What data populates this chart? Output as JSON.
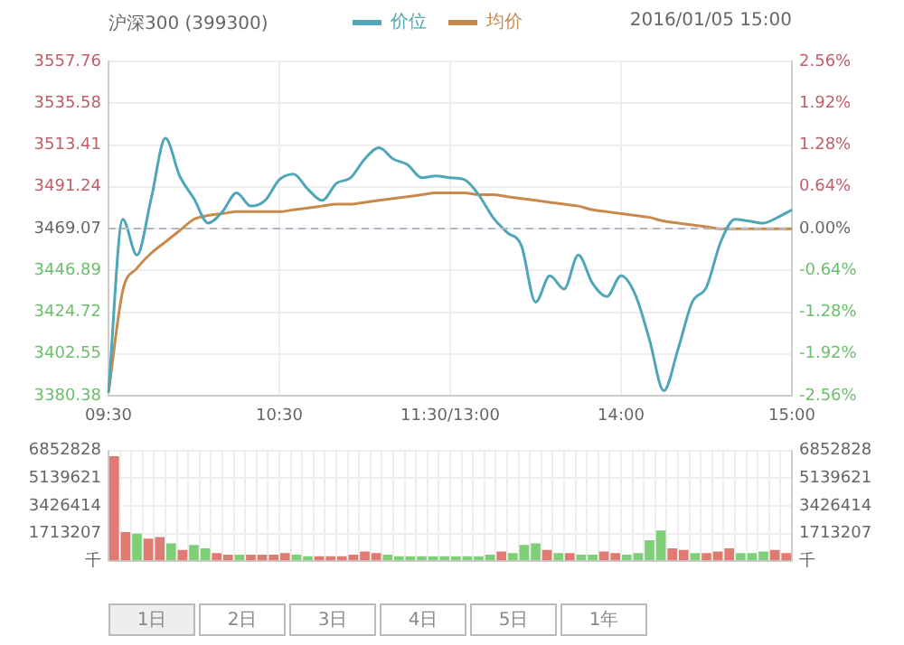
{
  "chart_data": [
    {
      "type": "line",
      "title": "沪深300 (399300)",
      "subtitle": "2016/01/05 15:00",
      "legend": "top",
      "marker": "none",
      "grid": true,
      "categories": [
        "09:30",
        null,
        null,
        null,
        null,
        null,
        null,
        null,
        null,
        null,
        null,
        null,
        "10:30",
        null,
        null,
        null,
        null,
        null,
        null,
        null,
        null,
        null,
        null,
        null,
        "11:30/13:00",
        null,
        null,
        null,
        null,
        null,
        null,
        null,
        null,
        null,
        null,
        null,
        "14:00",
        null,
        null,
        null,
        null,
        null,
        null,
        null,
        null,
        null,
        null,
        null,
        "15:00"
      ],
      "ylim": [
        3380.38,
        3557.76
      ],
      "yticks": [
        3380.38,
        3402.55,
        3424.72,
        3446.89,
        3469.07,
        3491.24,
        3513.41,
        3535.58,
        3557.76
      ],
      "y2lim": [
        -2.56,
        2.56
      ],
      "y2ticks": [
        {
          "value": -2.56,
          "label": "-2.56%"
        },
        {
          "value": -1.92,
          "label": "-1.92%"
        },
        {
          "value": -1.28,
          "label": "-1.28%"
        },
        {
          "value": -0.64,
          "label": "-0.64%"
        },
        {
          "value": 0,
          "label": "0.00%"
        },
        {
          "value": 0.64,
          "label": "0.64%"
        },
        {
          "value": 1.28,
          "label": "1.28%"
        },
        {
          "value": 1.92,
          "label": "1.92%"
        },
        {
          "value": 2.56,
          "label": "2.56%"
        }
      ],
      "ref_lines": [
        {
          "axis": "y",
          "value": 3469.07,
          "color": "#b0b8c8",
          "line_style": "dashed"
        }
      ],
      "series": [
        {
          "name": "价位",
          "color": "#4ea6b8",
          "values": [
            3382,
            3474,
            3455,
            3485,
            3517,
            3497,
            3485,
            3472,
            3478,
            3488,
            3481,
            3484,
            3495,
            3498,
            3490,
            3484,
            3493,
            3496,
            3506,
            3512,
            3506,
            3503,
            3496,
            3497,
            3496,
            3495,
            3487,
            3475,
            3467,
            3460,
            3430,
            3444,
            3437,
            3455,
            3440,
            3433,
            3444,
            3434,
            3410,
            3383,
            3405,
            3430,
            3438,
            3462,
            3474,
            3473,
            3472,
            3475,
            3479
          ]
        },
        {
          "name": "均价",
          "color": "#c88a4a",
          "values": [
            3382,
            3436,
            3448,
            3456,
            3462,
            3468,
            3474,
            3476,
            3477,
            3478,
            3478,
            3478,
            3478,
            3479,
            3480,
            3481,
            3482,
            3482,
            3483,
            3484,
            3485,
            3486,
            3487,
            3488,
            3488,
            3488,
            3487,
            3487,
            3486,
            3485,
            3484,
            3483,
            3482,
            3481,
            3479,
            3478,
            3477,
            3476,
            3475,
            3473,
            3472,
            3471,
            3470,
            3469,
            3469,
            3469,
            3469,
            3469,
            3469
          ]
        }
      ]
    },
    {
      "type": "bar",
      "grid": true,
      "annotations": [
        "1日",
        "2日",
        "3日",
        "4日",
        "5日",
        "1年"
      ],
      "categories": [
        null,
        null,
        null,
        null,
        null,
        null,
        null,
        null,
        null,
        null,
        null,
        null,
        null,
        null,
        null,
        null,
        null,
        null,
        null,
        null,
        null,
        null,
        null,
        null,
        null,
        null,
        null,
        null,
        null,
        null,
        null,
        null,
        null,
        null,
        null,
        null,
        null,
        null,
        null,
        null,
        null,
        null,
        null,
        null,
        null,
        null,
        null,
        null,
        null,
        null,
        null,
        null,
        null,
        null,
        null,
        null,
        null,
        null,
        null,
        null
      ],
      "values": [
        6500000,
        1800000,
        1700000,
        1400000,
        1500000,
        1100000,
        700000,
        1000000,
        800000,
        500000,
        400000,
        400000,
        400000,
        400000,
        400000,
        500000,
        400000,
        300000,
        300000,
        300000,
        300000,
        400000,
        600000,
        500000,
        400000,
        300000,
        300000,
        300000,
        300000,
        300000,
        300000,
        300000,
        300000,
        400000,
        600000,
        500000,
        1000000,
        1100000,
        700000,
        500000,
        500000,
        400000,
        400000,
        600000,
        500000,
        400000,
        500000,
        1300000,
        1900000,
        800000,
        700000,
        500000,
        500000,
        600000,
        800000,
        500000,
        500000,
        600000,
        700000,
        500000
      ],
      "colors": [
        "#e07a72",
        "#e07a72",
        "#7fcf78",
        "#e07a72",
        "#e07a72",
        "#7fcf78",
        "#e07a72",
        "#7fcf78",
        "#7fcf78",
        "#e07a72",
        "#e07a72",
        "#7fcf78",
        "#e07a72",
        "#e07a72",
        "#e07a72",
        "#e07a72",
        "#7fcf78",
        "#7fcf78",
        "#e07a72",
        "#e07a72",
        "#e07a72",
        "#e07a72",
        "#e07a72",
        "#e07a72",
        "#7fcf78",
        "#7fcf78",
        "#7fcf78",
        "#7fcf78",
        "#7fcf78",
        "#7fcf78",
        "#7fcf78",
        "#7fcf78",
        "#7fcf78",
        "#7fcf78",
        "#e07a72",
        "#7fcf78",
        "#7fcf78",
        "#7fcf78",
        "#e07a72",
        "#7fcf78",
        "#e07a72",
        "#7fcf78",
        "#7fcf78",
        "#e07a72",
        "#e07a72",
        "#7fcf78",
        "#7fcf78",
        "#7fcf78",
        "#7fcf78",
        "#e07a72",
        "#e07a72",
        "#7fcf78",
        "#e07a72",
        "#e07a72",
        "#e07a72",
        "#7fcf78",
        "#7fcf78",
        "#7fcf78",
        "#e07a72",
        "#e07a72"
      ],
      "ylim": [
        0,
        6852828
      ],
      "yticks": [
        {
          "value": 0,
          "label": "千"
        },
        1713207,
        3426414,
        5139621,
        6852828
      ],
      "y2lim": [
        0,
        6852828
      ],
      "y2ticks": [
        {
          "value": 0,
          "label": "千"
        },
        1713207,
        3426414,
        5139621,
        6852828
      ]
    }
  ]
}
